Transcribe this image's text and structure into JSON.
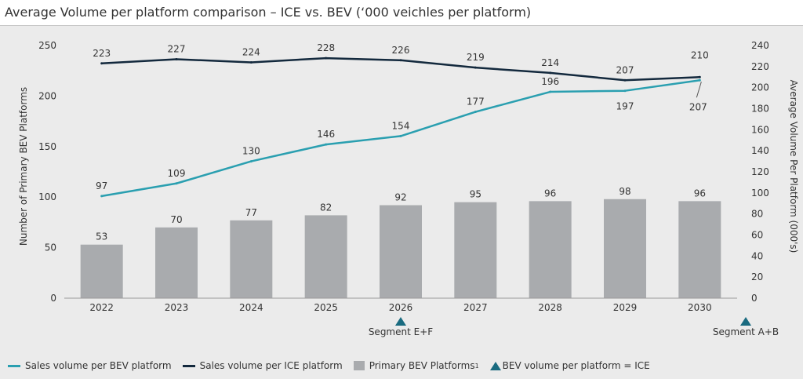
{
  "title": "Average Volume per platform comparison – ICE vs. BEV (‘000 veichles per platform)",
  "colors": {
    "bev_line": "#2a9fb0",
    "ice_line": "#13293d",
    "bars": "#a9abae",
    "marker": "#1a6b80",
    "panel": "#ebebeb"
  },
  "chart_data": {
    "type": "bar",
    "categories": [
      "2022",
      "2023",
      "2024",
      "2025",
      "2026",
      "2027",
      "2028",
      "2029",
      "2030"
    ],
    "left_axis": {
      "label": "Number of Primary BEV Platforms",
      "range": [
        0,
        250
      ],
      "ticks": [
        "0",
        "50",
        "100",
        "150",
        "200",
        "250"
      ]
    },
    "right_axis": {
      "label": "Average Volume Per Platform (000's)",
      "range": [
        0,
        240
      ],
      "ticks": [
        "0",
        "20",
        "40",
        "60",
        "80",
        "100",
        "120",
        "140",
        "160",
        "180",
        "200",
        "220",
        "240"
      ]
    },
    "series": [
      {
        "name": "Primary BEV Platforms",
        "type": "bar",
        "axis": "left",
        "values": [
          53,
          70,
          77,
          82,
          92,
          95,
          96,
          98,
          96
        ],
        "labels": [
          "53",
          "70",
          "77",
          "82",
          "92",
          "95",
          "96",
          "98",
          "96"
        ]
      },
      {
        "name": "Sales volume per BEV platform",
        "type": "line",
        "axis": "right",
        "values": [
          97,
          109,
          130,
          146,
          154,
          177,
          196,
          197,
          207
        ],
        "labels": [
          "97",
          "109",
          "130",
          "146",
          "154",
          "177",
          "196",
          "197",
          "207"
        ]
      },
      {
        "name": "Sales volume per ICE platform",
        "type": "line",
        "axis": "right",
        "values": [
          223,
          227,
          224,
          228,
          226,
          219,
          214,
          207,
          210
        ],
        "labels": [
          "223",
          "227",
          "224",
          "228",
          "226",
          "219",
          "214",
          "207",
          "210"
        ]
      }
    ],
    "markers": [
      {
        "position": "2026",
        "label": "Segment E+F"
      },
      {
        "position": "after 2030",
        "label": "Segment A+B"
      }
    ],
    "legend": {
      "placement": "bottom",
      "items": [
        "Sales volume per BEV platform",
        "Sales volume per ICE platform",
        "Primary BEV Platforms",
        "BEV volume per platform = ICE"
      ],
      "footnote_mark": "1"
    },
    "grid": false
  }
}
